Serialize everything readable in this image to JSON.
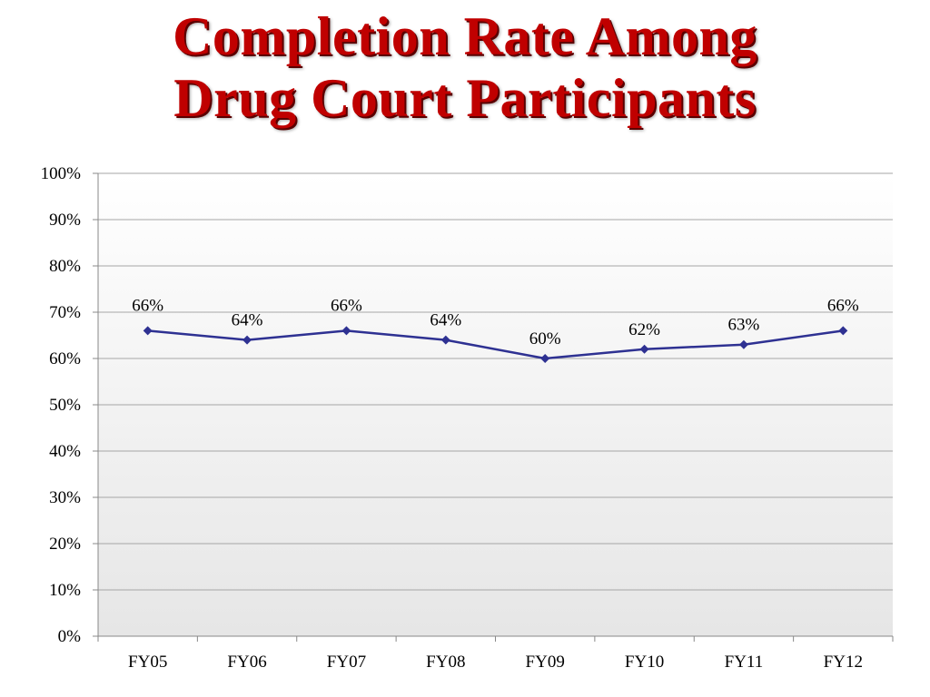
{
  "slide": {
    "title_line1": "Completion Rate Among",
    "title_line2": "Drug Court Participants",
    "title_color": "#c00000"
  },
  "chart_data": {
    "type": "line",
    "categories": [
      "FY05",
      "FY06",
      "FY07",
      "FY08",
      "FY09",
      "FY10",
      "FY11",
      "FY12"
    ],
    "series": [
      {
        "values": [
          66,
          64,
          66,
          64,
          60,
          62,
          63,
          66
        ],
        "color": "#2e3192",
        "marker": "diamond"
      }
    ],
    "data_labels": [
      "66%",
      "64%",
      "66%",
      "64%",
      "60%",
      "62%",
      "63%",
      "66%"
    ],
    "yticks": [
      "0%",
      "10%",
      "20%",
      "30%",
      "40%",
      "50%",
      "60%",
      "70%",
      "80%",
      "90%",
      "100%"
    ],
    "ylim": [
      0,
      100
    ],
    "grid": true,
    "legend": "none"
  }
}
